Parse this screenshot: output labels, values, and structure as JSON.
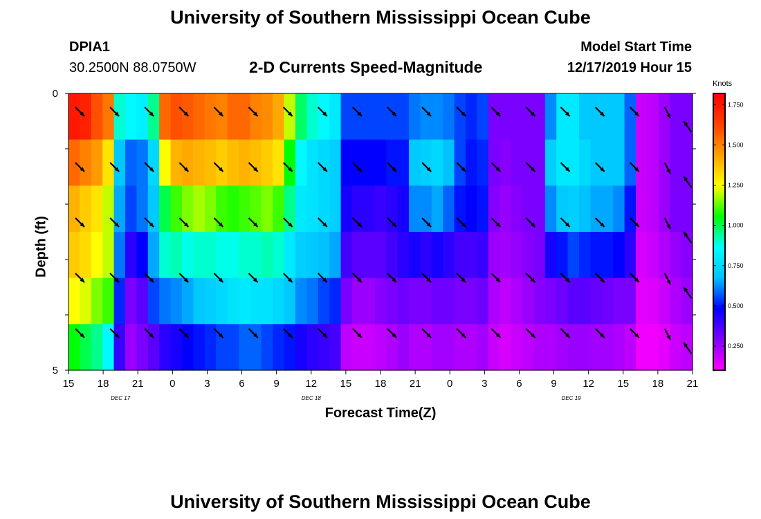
{
  "header": {
    "title": "University of Southern Mississippi Ocean Cube",
    "station": "DPIA1",
    "coords": "30.2500N 88.0750W",
    "plot_title": "2-D Currents Speed-Magnitude",
    "model_label": "Model Start Time",
    "model_time": "12/17/2019 Hour 15"
  },
  "footer": {
    "title": "University of Southern Mississippi Ocean Cube"
  },
  "chart_data": {
    "type": "heatmap",
    "title": "2-D Currents Speed-Magnitude",
    "xlabel": "Forecast Time(Z)",
    "ylabel": "Depth (ft)",
    "x_ticks": [
      "15",
      "18",
      "21",
      "0",
      "3",
      "6",
      "9",
      "12",
      "15",
      "18",
      "21",
      "0",
      "3",
      "6",
      "9",
      "12",
      "15",
      "18",
      "21"
    ],
    "x_hours": [
      0,
      3,
      6,
      9,
      12,
      15,
      18,
      21,
      24,
      27,
      30,
      33,
      36,
      39,
      42,
      45,
      48,
      51,
      54
    ],
    "date_labels": [
      {
        "label": "DEC 17",
        "hour": 4.5
      },
      {
        "label": "DEC 18",
        "hour": 21
      },
      {
        "label": "DEC 19",
        "hour": 43.5
      }
    ],
    "y_ticks": [
      "0",
      "5"
    ],
    "ylim": [
      0,
      5
    ],
    "depth_levels": [
      0,
      1,
      2,
      3,
      4,
      5
    ],
    "colorbar": {
      "units": "Knots",
      "ticks": [
        "0.250",
        "0.500",
        "0.750",
        "1.000",
        "1.250",
        "1.500",
        "1.750"
      ],
      "tick_values": [
        0.25,
        0.5,
        0.75,
        1.0,
        1.25,
        1.5,
        1.75
      ],
      "range": [
        0.1,
        1.82
      ],
      "colors": [
        "#ff00ff",
        "#8000ff",
        "#0000ff",
        "#00c0ff",
        "#00ffff",
        "#00ff00",
        "#ffff00",
        "#ffa000",
        "#ff4000",
        "#ff0000"
      ]
    },
    "speed_knots": [
      [
        1.75,
        1.72,
        1.6,
        1.52,
        0.9,
        0.85,
        0.82,
        0.95,
        1.55,
        1.6,
        1.58,
        1.55,
        1.52,
        1.5,
        1.55,
        1.55,
        1.5,
        1.48,
        1.42,
        1.2,
        0.98,
        0.9,
        0.85,
        0.8,
        0.55,
        0.55,
        0.55,
        0.55,
        0.55,
        0.55,
        0.6,
        0.62,
        0.62,
        0.6,
        0.55,
        0.52,
        0.55,
        0.3,
        0.3,
        0.3,
        0.3,
        0.3,
        0.62,
        0.8,
        0.8,
        0.7,
        0.7,
        0.7,
        0.7,
        0.58,
        0.18,
        0.2,
        0.25,
        0.3,
        0.3
      ],
      [
        1.55,
        1.5,
        1.45,
        1.3,
        0.7,
        0.58,
        0.6,
        0.75,
        1.25,
        1.4,
        1.42,
        1.4,
        1.38,
        1.35,
        1.38,
        1.4,
        1.38,
        1.35,
        1.3,
        1.05,
        0.85,
        0.78,
        0.75,
        0.72,
        0.48,
        0.48,
        0.48,
        0.48,
        0.5,
        0.5,
        0.7,
        0.72,
        0.75,
        0.68,
        0.55,
        0.5,
        0.52,
        0.3,
        0.28,
        0.3,
        0.3,
        0.3,
        0.72,
        0.8,
        0.8,
        0.75,
        0.7,
        0.7,
        0.7,
        0.58,
        0.18,
        0.2,
        0.25,
        0.3,
        0.3
      ],
      [
        1.4,
        1.35,
        1.3,
        1.2,
        0.65,
        0.55,
        0.6,
        0.7,
        1.0,
        1.1,
        1.15,
        1.18,
        1.15,
        1.1,
        1.08,
        1.1,
        1.12,
        1.15,
        1.1,
        0.95,
        0.8,
        0.78,
        0.75,
        0.72,
        0.45,
        0.42,
        0.42,
        0.4,
        0.42,
        0.45,
        0.62,
        0.62,
        0.65,
        0.58,
        0.5,
        0.48,
        0.5,
        0.28,
        0.26,
        0.28,
        0.3,
        0.3,
        0.62,
        0.7,
        0.72,
        0.68,
        0.65,
        0.65,
        0.62,
        0.5,
        0.18,
        0.2,
        0.25,
        0.3,
        0.3
      ],
      [
        1.35,
        1.32,
        1.25,
        1.2,
        0.6,
        0.42,
        0.48,
        0.65,
        0.9,
        0.92,
        0.88,
        0.9,
        0.9,
        0.88,
        0.88,
        0.9,
        0.9,
        0.92,
        0.9,
        0.8,
        0.72,
        0.7,
        0.68,
        0.65,
        0.38,
        0.35,
        0.35,
        0.35,
        0.38,
        0.42,
        0.45,
        0.42,
        0.45,
        0.42,
        0.38,
        0.38,
        0.4,
        0.25,
        0.24,
        0.26,
        0.28,
        0.3,
        0.45,
        0.5,
        0.55,
        0.52,
        0.5,
        0.5,
        0.48,
        0.42,
        0.16,
        0.18,
        0.22,
        0.26,
        0.28
      ],
      [
        1.25,
        1.22,
        1.15,
        1.1,
        0.52,
        0.3,
        0.35,
        0.55,
        0.6,
        0.62,
        0.65,
        0.7,
        0.72,
        0.75,
        0.78,
        0.8,
        0.78,
        0.78,
        0.75,
        0.7,
        0.62,
        0.6,
        0.55,
        0.52,
        0.3,
        0.25,
        0.25,
        0.28,
        0.3,
        0.32,
        0.3,
        0.3,
        0.32,
        0.32,
        0.3,
        0.3,
        0.32,
        0.22,
        0.2,
        0.22,
        0.25,
        0.28,
        0.3,
        0.32,
        0.35,
        0.35,
        0.33,
        0.32,
        0.3,
        0.3,
        0.14,
        0.15,
        0.18,
        0.22,
        0.25
      ],
      [
        1.05,
        1.0,
        0.95,
        0.85,
        0.4,
        0.25,
        0.3,
        0.35,
        0.42,
        0.45,
        0.48,
        0.5,
        0.52,
        0.55,
        0.55,
        0.58,
        0.58,
        0.55,
        0.52,
        0.5,
        0.45,
        0.42,
        0.4,
        0.38,
        0.2,
        0.18,
        0.18,
        0.2,
        0.22,
        0.25,
        0.22,
        0.22,
        0.24,
        0.24,
        0.22,
        0.22,
        0.24,
        0.18,
        0.16,
        0.18,
        0.2,
        0.22,
        0.22,
        0.24,
        0.25,
        0.25,
        0.24,
        0.24,
        0.22,
        0.2,
        0.12,
        0.12,
        0.14,
        0.18,
        0.2
      ]
    ],
    "arrows": [
      {
        "hour": 0.3,
        "depth": 0.25,
        "dir": "SE"
      },
      {
        "hour": 3.3,
        "depth": 0.25,
        "dir": "SE"
      },
      {
        "hour": 6.3,
        "depth": 0.25,
        "dir": "SE"
      },
      {
        "hour": 9.3,
        "depth": 0.25,
        "dir": "SE"
      },
      {
        "hour": 12.3,
        "depth": 0.25,
        "dir": "SE"
      },
      {
        "hour": 15.3,
        "depth": 0.25,
        "dir": "SE"
      },
      {
        "hour": 18.3,
        "depth": 0.25,
        "dir": "SE"
      },
      {
        "hour": 21.3,
        "depth": 0.25,
        "dir": "SE"
      },
      {
        "hour": 24.3,
        "depth": 0.25,
        "dir": "SE"
      },
      {
        "hour": 27.3,
        "depth": 0.25,
        "dir": "SE"
      },
      {
        "hour": 30.3,
        "depth": 0.25,
        "dir": "SE"
      },
      {
        "hour": 33.3,
        "depth": 0.25,
        "dir": "SE"
      },
      {
        "hour": 36.3,
        "depth": 0.25,
        "dir": "SE"
      },
      {
        "hour": 39.3,
        "depth": 0.25,
        "dir": "SE"
      },
      {
        "hour": 42.3,
        "depth": 0.25,
        "dir": "SE"
      },
      {
        "hour": 45.3,
        "depth": 0.25,
        "dir": "SE"
      },
      {
        "hour": 48.3,
        "depth": 0.25,
        "dir": "SE"
      },
      {
        "hour": 51.3,
        "depth": 0.25,
        "dir": "SSE"
      },
      {
        "hour": 0.3,
        "depth": 1.25,
        "dir": "SE"
      },
      {
        "hour": 3.3,
        "depth": 1.25,
        "dir": "SE"
      },
      {
        "hour": 6.3,
        "depth": 1.25,
        "dir": "SE"
      },
      {
        "hour": 9.3,
        "depth": 1.25,
        "dir": "SE"
      },
      {
        "hour": 12.3,
        "depth": 1.25,
        "dir": "SE"
      },
      {
        "hour": 15.3,
        "depth": 1.25,
        "dir": "SE"
      },
      {
        "hour": 18.3,
        "depth": 1.25,
        "dir": "SE"
      },
      {
        "hour": 21.3,
        "depth": 1.25,
        "dir": "SE"
      },
      {
        "hour": 24.3,
        "depth": 1.25,
        "dir": "SE"
      },
      {
        "hour": 27.3,
        "depth": 1.25,
        "dir": "SE"
      },
      {
        "hour": 30.3,
        "depth": 1.25,
        "dir": "SE"
      },
      {
        "hour": 33.3,
        "depth": 1.25,
        "dir": "SE"
      },
      {
        "hour": 36.3,
        "depth": 1.25,
        "dir": "SE"
      },
      {
        "hour": 39.3,
        "depth": 1.25,
        "dir": "SE"
      },
      {
        "hour": 42.3,
        "depth": 1.25,
        "dir": "SE"
      },
      {
        "hour": 45.3,
        "depth": 1.25,
        "dir": "SE"
      },
      {
        "hour": 48.3,
        "depth": 1.25,
        "dir": "SE"
      },
      {
        "hour": 51.3,
        "depth": 1.25,
        "dir": "SSE"
      },
      {
        "hour": 0.3,
        "depth": 2.25,
        "dir": "SE"
      },
      {
        "hour": 3.3,
        "depth": 2.25,
        "dir": "SE"
      },
      {
        "hour": 6.3,
        "depth": 2.25,
        "dir": "SE"
      },
      {
        "hour": 9.3,
        "depth": 2.25,
        "dir": "SE"
      },
      {
        "hour": 12.3,
        "depth": 2.25,
        "dir": "SE"
      },
      {
        "hour": 15.3,
        "depth": 2.25,
        "dir": "SE"
      },
      {
        "hour": 18.3,
        "depth": 2.25,
        "dir": "SE"
      },
      {
        "hour": 21.3,
        "depth": 2.25,
        "dir": "SE"
      },
      {
        "hour": 24.3,
        "depth": 2.25,
        "dir": "SE"
      },
      {
        "hour": 27.3,
        "depth": 2.25,
        "dir": "SE"
      },
      {
        "hour": 30.3,
        "depth": 2.25,
        "dir": "SE"
      },
      {
        "hour": 33.3,
        "depth": 2.25,
        "dir": "SE"
      },
      {
        "hour": 36.3,
        "depth": 2.25,
        "dir": "SE"
      },
      {
        "hour": 39.3,
        "depth": 2.25,
        "dir": "SE"
      },
      {
        "hour": 42.3,
        "depth": 2.25,
        "dir": "SE"
      },
      {
        "hour": 45.3,
        "depth": 2.25,
        "dir": "SE"
      },
      {
        "hour": 48.3,
        "depth": 2.25,
        "dir": "SE"
      },
      {
        "hour": 51.3,
        "depth": 2.25,
        "dir": "SSE"
      },
      {
        "hour": 0.3,
        "depth": 3.25,
        "dir": "SE"
      },
      {
        "hour": 3.3,
        "depth": 3.25,
        "dir": "SE"
      },
      {
        "hour": 6.3,
        "depth": 3.25,
        "dir": "SE"
      },
      {
        "hour": 9.3,
        "depth": 3.25,
        "dir": "SE"
      },
      {
        "hour": 12.3,
        "depth": 3.25,
        "dir": "SE"
      },
      {
        "hour": 15.3,
        "depth": 3.25,
        "dir": "SE"
      },
      {
        "hour": 18.3,
        "depth": 3.25,
        "dir": "SE"
      },
      {
        "hour": 21.3,
        "depth": 3.25,
        "dir": "SE"
      },
      {
        "hour": 24.3,
        "depth": 3.25,
        "dir": "SE"
      },
      {
        "hour": 27.3,
        "depth": 3.25,
        "dir": "SE"
      },
      {
        "hour": 30.3,
        "depth": 3.25,
        "dir": "SE"
      },
      {
        "hour": 33.3,
        "depth": 3.25,
        "dir": "SE"
      },
      {
        "hour": 36.3,
        "depth": 3.25,
        "dir": "SE"
      },
      {
        "hour": 39.3,
        "depth": 3.25,
        "dir": "SE"
      },
      {
        "hour": 42.3,
        "depth": 3.25,
        "dir": "SE"
      },
      {
        "hour": 45.3,
        "depth": 3.25,
        "dir": "SE"
      },
      {
        "hour": 48.3,
        "depth": 3.25,
        "dir": "SE"
      },
      {
        "hour": 51.3,
        "depth": 3.25,
        "dir": "SSE"
      },
      {
        "hour": 0.3,
        "depth": 4.25,
        "dir": "SE"
      },
      {
        "hour": 3.3,
        "depth": 4.25,
        "dir": "SE"
      },
      {
        "hour": 6.3,
        "depth": 4.25,
        "dir": "SE"
      },
      {
        "hour": 9.3,
        "depth": 4.25,
        "dir": "SE"
      },
      {
        "hour": 12.3,
        "depth": 4.25,
        "dir": "SE"
      },
      {
        "hour": 15.3,
        "depth": 4.25,
        "dir": "SE"
      },
      {
        "hour": 18.3,
        "depth": 4.25,
        "dir": "SE"
      },
      {
        "hour": 21.3,
        "depth": 4.25,
        "dir": "SE"
      },
      {
        "hour": 24.3,
        "depth": 4.25,
        "dir": "SE"
      },
      {
        "hour": 27.3,
        "depth": 4.25,
        "dir": "SE"
      },
      {
        "hour": 30.3,
        "depth": 4.25,
        "dir": "SE"
      },
      {
        "hour": 33.3,
        "depth": 4.25,
        "dir": "SE"
      },
      {
        "hour": 36.3,
        "depth": 4.25,
        "dir": "SE"
      },
      {
        "hour": 39.3,
        "depth": 4.25,
        "dir": "SE"
      },
      {
        "hour": 42.3,
        "depth": 4.25,
        "dir": "SE"
      },
      {
        "hour": 45.3,
        "depth": 4.25,
        "dir": "SE"
      },
      {
        "hour": 48.3,
        "depth": 4.25,
        "dir": "SE"
      },
      {
        "hour": 51.3,
        "depth": 4.25,
        "dir": "SSE"
      },
      {
        "hour": 53.6,
        "depth": 0.7,
        "dir": "NW"
      },
      {
        "hour": 53.6,
        "depth": 1.7,
        "dir": "NW"
      },
      {
        "hour": 53.6,
        "depth": 2.7,
        "dir": "NW"
      },
      {
        "hour": 53.6,
        "depth": 3.7,
        "dir": "NW"
      },
      {
        "hour": 53.6,
        "depth": 4.7,
        "dir": "NW"
      }
    ]
  }
}
